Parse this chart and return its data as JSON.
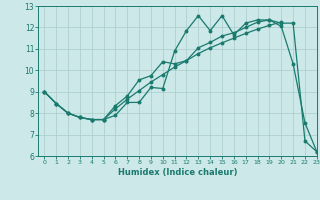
{
  "xlabel": "Humidex (Indice chaleur)",
  "bg_color": "#cce8e8",
  "grid_color": "#aacccc",
  "line_color": "#1a7a6e",
  "xlim": [
    -0.5,
    23
  ],
  "ylim": [
    6,
    13
  ],
  "yticks": [
    6,
    7,
    8,
    9,
    10,
    11,
    12,
    13
  ],
  "xticks": [
    0,
    1,
    2,
    3,
    4,
    5,
    6,
    7,
    8,
    9,
    10,
    11,
    12,
    13,
    14,
    15,
    16,
    17,
    18,
    19,
    20,
    21,
    22,
    23
  ],
  "s1_x": [
    0,
    1,
    2,
    3,
    4,
    5,
    6,
    7,
    8,
    9,
    10,
    11,
    12,
    13,
    14,
    15,
    16,
    17,
    18,
    19,
    20,
    21,
    22,
    23
  ],
  "s1_y": [
    9.0,
    8.45,
    8.0,
    7.8,
    7.7,
    7.7,
    7.9,
    8.5,
    8.5,
    9.2,
    9.15,
    10.9,
    11.85,
    12.55,
    11.85,
    12.55,
    11.65,
    12.2,
    12.35,
    12.35,
    12.05,
    10.3,
    7.55,
    6.2
  ],
  "s2_x": [
    0,
    1,
    2,
    3,
    4,
    5,
    6,
    7,
    8,
    9,
    10,
    11,
    12,
    13,
    14,
    15,
    16,
    17,
    18,
    19,
    20,
    21,
    22,
    23
  ],
  "s2_y": [
    9.0,
    8.45,
    8.0,
    7.8,
    7.7,
    7.7,
    8.35,
    8.8,
    9.55,
    9.75,
    10.4,
    10.3,
    10.45,
    11.05,
    11.3,
    11.6,
    11.75,
    12.0,
    12.25,
    12.35,
    12.2,
    12.2,
    6.7,
    6.2
  ],
  "s3_x": [
    0,
    1,
    2,
    3,
    4,
    5,
    6,
    7,
    8,
    9,
    10,
    11,
    12,
    13,
    14,
    15,
    16,
    17,
    18,
    19,
    20
  ],
  "s3_y": [
    9.0,
    8.45,
    8.0,
    7.8,
    7.7,
    7.7,
    8.2,
    8.65,
    9.05,
    9.45,
    9.8,
    10.15,
    10.45,
    10.78,
    11.05,
    11.28,
    11.5,
    11.72,
    11.92,
    12.1,
    12.25
  ]
}
